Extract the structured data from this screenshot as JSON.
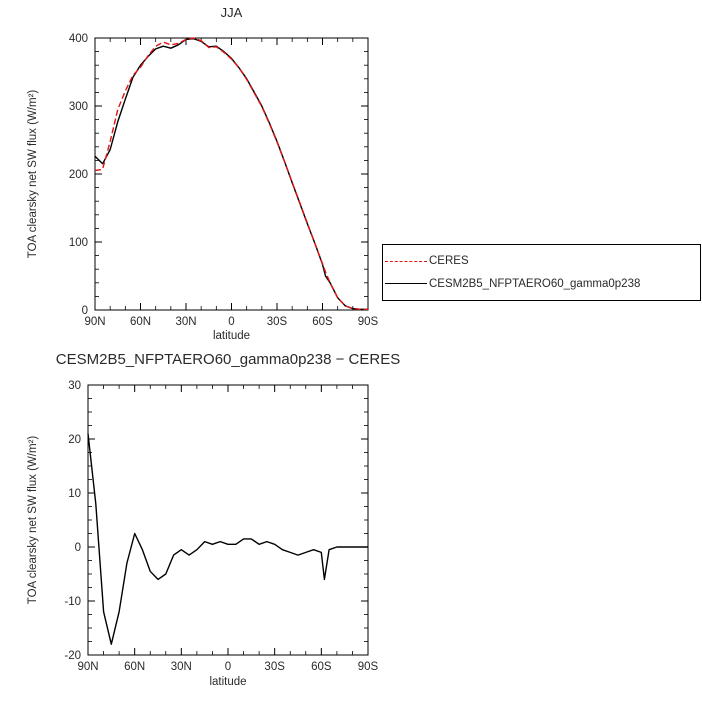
{
  "page": {
    "background": "#ffffff",
    "text_color": "#2a2a2a",
    "axis_color": "#000000"
  },
  "chart_data": [
    {
      "type": "line",
      "title": "JJA",
      "xlabel": "latitude",
      "ylabel": "TOA clearsky net SW flux (W/m²)",
      "xlim": [
        90,
        -90
      ],
      "ylim": [
        0,
        400
      ],
      "xticks": [
        {
          "v": 90,
          "label": "90N"
        },
        {
          "v": 60,
          "label": "60N"
        },
        {
          "v": 30,
          "label": "30N"
        },
        {
          "v": 0,
          "label": "0"
        },
        {
          "v": -30,
          "label": "30S"
        },
        {
          "v": -60,
          "label": "60S"
        },
        {
          "v": -90,
          "label": "90S"
        }
      ],
      "yticks": [
        0,
        100,
        200,
        300,
        400
      ],
      "xminor": 10,
      "yminor": 20,
      "legend_position": "outside-right",
      "grid": false,
      "x": [
        90,
        85,
        80,
        75,
        70,
        65,
        60,
        55,
        50,
        45,
        40,
        35,
        30,
        25,
        20,
        15,
        10,
        5,
        0,
        -5,
        -10,
        -15,
        -20,
        -25,
        -30,
        -35,
        -40,
        -45,
        -50,
        -55,
        -60,
        -62,
        -65,
        -70,
        -75,
        -80,
        -85,
        -90
      ],
      "series": [
        {
          "name": "CERES",
          "color": "#e21414",
          "dash": "6,3",
          "values": [
            205,
            207,
            248,
            295,
            322,
            345,
            357,
            374,
            388,
            394,
            390,
            392,
            398,
            400,
            396,
            386,
            387,
            379,
            369,
            356,
            339,
            319,
            299,
            274,
            247,
            218,
            188,
            158,
            128,
            98,
            68,
            56,
            40,
            18,
            6,
            2,
            1,
            1
          ]
        },
        {
          "name": "CESM2B5_NFPTAERO60_gamma0p238",
          "color": "#000000",
          "dash": "",
          "values": [
            226,
            215,
            236,
            277,
            310,
            342,
            360,
            373,
            384,
            388,
            385,
            390,
            398,
            399,
            395,
            387,
            388,
            380,
            370,
            356,
            340,
            320,
            300,
            275,
            248,
            218,
            187,
            157,
            127,
            98,
            67,
            50,
            40,
            18,
            6,
            2,
            1,
            1
          ]
        }
      ]
    },
    {
      "type": "line",
      "title": "CESM2B5_NFPTAERO60_gamma0p238 − CERES",
      "xlabel": "latitude",
      "ylabel": "TOA clearsky net SW flux (W/m²)",
      "xlim": [
        90,
        -90
      ],
      "ylim": [
        -20,
        30
      ],
      "xticks": [
        {
          "v": 90,
          "label": "90N"
        },
        {
          "v": 60,
          "label": "60N"
        },
        {
          "v": 30,
          "label": "30N"
        },
        {
          "v": 0,
          "label": "0"
        },
        {
          "v": -30,
          "label": "30S"
        },
        {
          "v": -60,
          "label": "60S"
        },
        {
          "v": -90,
          "label": "90S"
        }
      ],
      "yticks": [
        -20,
        -10,
        0,
        10,
        20,
        30
      ],
      "xminor": 10,
      "yminor": 2.5,
      "grid": false,
      "x": [
        90,
        85,
        80,
        75,
        70,
        65,
        60,
        55,
        50,
        45,
        40,
        35,
        30,
        25,
        20,
        15,
        10,
        5,
        0,
        -5,
        -10,
        -15,
        -20,
        -25,
        -30,
        -35,
        -40,
        -45,
        -50,
        -55,
        -60,
        -62,
        -65,
        -70,
        -75,
        -80,
        -85,
        -90
      ],
      "series": [
        {
          "name": "CESM2B5_NFPTAERO60_gamma0p238 − CERES",
          "color": "#000000",
          "dash": "",
          "values": [
            21,
            8,
            -12,
            -18,
            -12,
            -3,
            2.5,
            -0.5,
            -4.5,
            -6,
            -5,
            -1.5,
            -0.5,
            -1.5,
            -0.5,
            1,
            0.5,
            1,
            0.5,
            0.5,
            1.5,
            1.5,
            0.5,
            1,
            0.5,
            -0.5,
            -1,
            -1.5,
            -1,
            -0.5,
            -1,
            -6,
            -0.5,
            0,
            0,
            0,
            0,
            0
          ]
        }
      ]
    }
  ]
}
